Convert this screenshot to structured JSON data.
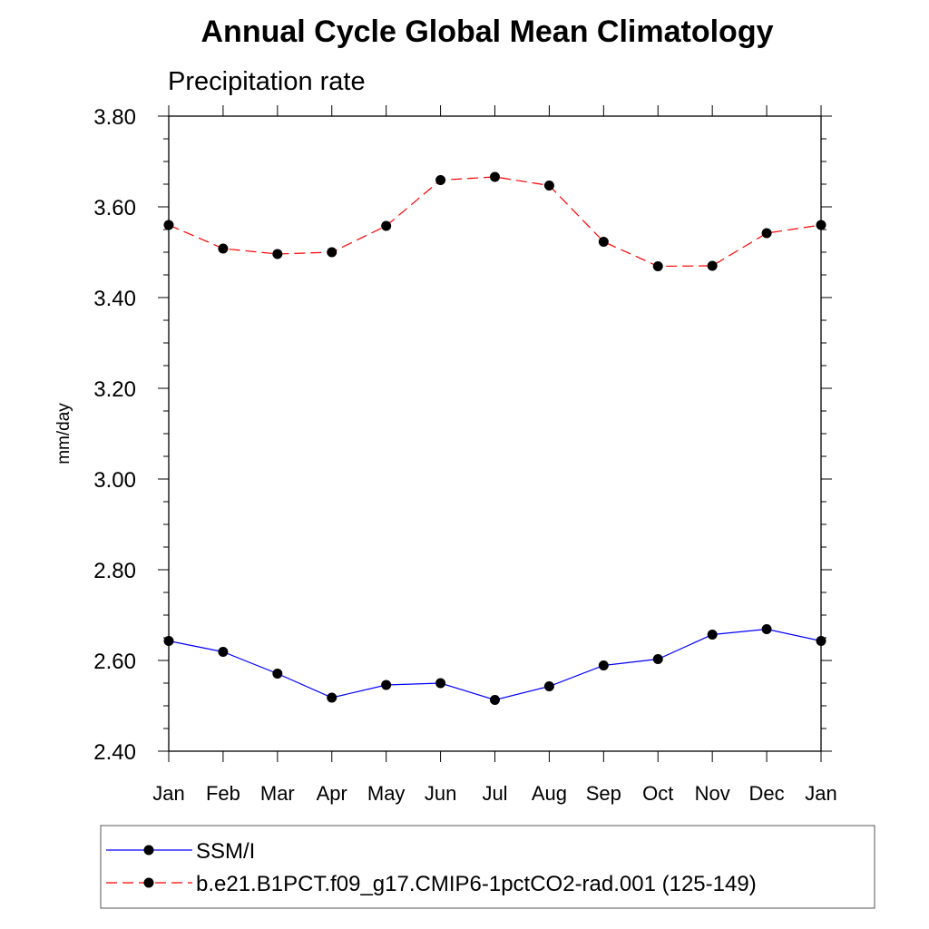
{
  "chart_data": {
    "type": "line",
    "title": "Annual Cycle Global Mean Climatology",
    "subtitle": "Precipitation rate",
    "xlabel": "",
    "ylabel": "mm/day",
    "ylim": [
      2.4,
      3.8
    ],
    "yticks": [
      "3.80",
      "3.60",
      "3.40",
      "3.20",
      "3.00",
      "2.80",
      "2.60",
      "2.40"
    ],
    "categories": [
      "Jan",
      "Feb",
      "Mar",
      "Apr",
      "May",
      "Jun",
      "Jul",
      "Aug",
      "Sep",
      "Oct",
      "Nov",
      "Dec",
      "Jan"
    ],
    "grid": false,
    "legend_position": "bottom",
    "series": [
      {
        "name": "SSM/I",
        "color": "#0000ff",
        "line_style": "solid",
        "marker": "filled-circle",
        "values": [
          2.643,
          2.619,
          2.571,
          2.518,
          2.546,
          2.55,
          2.513,
          2.543,
          2.589,
          2.603,
          2.657,
          2.669,
          2.643
        ]
      },
      {
        "name": "b.e21.B1PCT.f09_g17.CMIP6-1pctCO2-rad.001 (125-149)",
        "color": "#ff0000",
        "line_style": "dashed",
        "marker": "filled-circle",
        "values": [
          3.56,
          3.508,
          3.496,
          3.5,
          3.558,
          3.659,
          3.666,
          3.647,
          3.523,
          3.469,
          3.47,
          3.542,
          3.56
        ]
      }
    ]
  }
}
